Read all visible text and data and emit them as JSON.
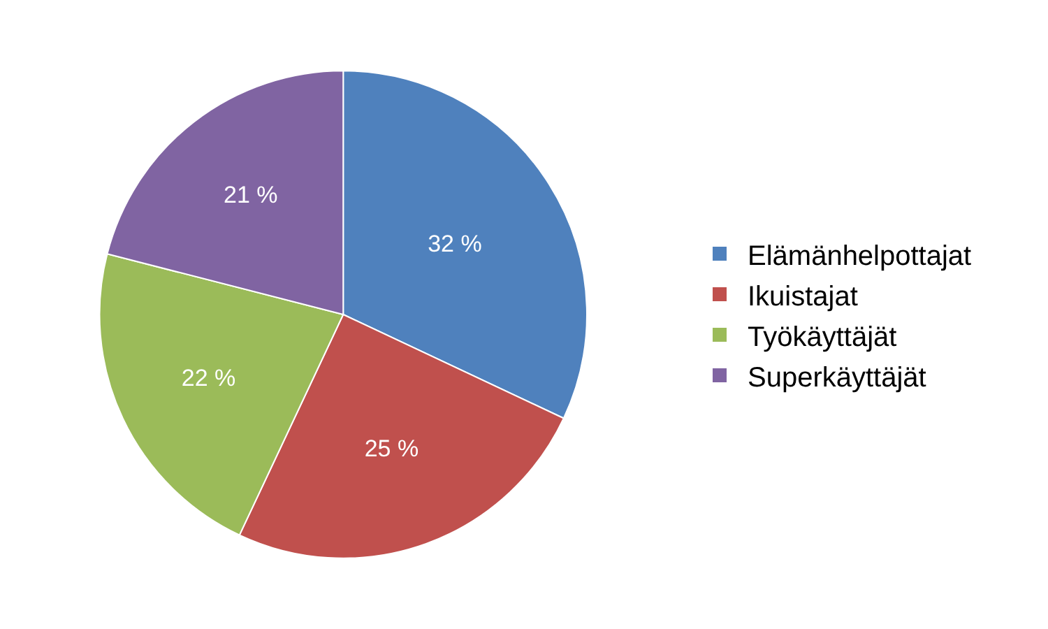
{
  "chart_data": {
    "type": "pie",
    "categories": [
      "Elämänhelpottajat",
      "Ikuistajat",
      "Työkäyttäjät",
      "Superkäyttäjät"
    ],
    "values": [
      32,
      25,
      22,
      21
    ],
    "value_labels": [
      "32 %",
      "25 %",
      "22 %",
      "21 %"
    ],
    "colors": [
      "#4f81bd",
      "#c0504d",
      "#9bbb59",
      "#8064a2"
    ],
    "legend": "right"
  }
}
